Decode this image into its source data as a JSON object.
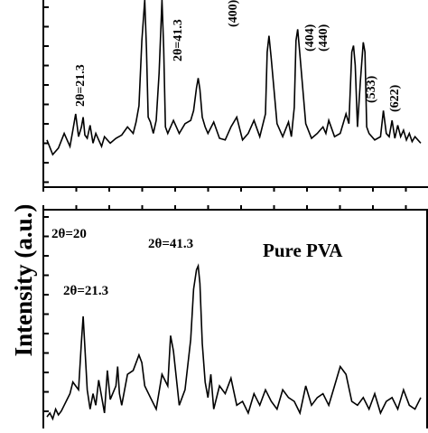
{
  "chart_data": [
    {
      "type": "line",
      "panel": "top",
      "title": "",
      "ylabel": "Intensity (a.u.)",
      "xlim": [
        15,
        80
      ],
      "ylim": [
        0,
        100
      ],
      "grid": false,
      "series": [
        {
          "x": [
            15,
            16,
            17,
            18,
            18.5,
            19,
            19.5,
            20,
            20.5,
            21,
            21.3,
            21.6,
            22,
            22.5,
            23,
            23.5,
            24,
            24.5,
            25,
            26,
            27,
            28,
            29,
            30,
            30.5,
            31,
            31.5,
            32,
            32.3,
            32.6,
            33,
            33.5,
            34,
            34.5,
            35,
            35.3,
            35.6,
            36,
            37,
            38,
            39,
            40,
            40.5,
            41,
            41.3,
            41.6,
            42,
            42.5,
            43,
            44,
            45,
            46,
            47,
            48,
            49,
            50,
            51,
            52,
            53,
            53.3,
            53.6,
            54,
            55,
            56,
            57,
            57.5,
            58,
            58.3,
            58.6,
            59,
            60,
            61,
            62,
            62.5,
            63,
            63.5,
            64,
            65,
            66,
            67,
            67.5,
            68,
            68.3,
            68.6,
            69,
            69.5,
            70,
            70.3,
            70.6,
            71,
            72,
            73,
            73.5,
            74,
            74.5,
            75,
            75.5,
            76,
            76.5,
            77,
            77.5,
            78,
            78.5,
            79,
            80
          ],
          "y": [
            14,
            5,
            9,
            18,
            14,
            10,
            20,
            30,
            16,
            22,
            28,
            17,
            15,
            23,
            12,
            18,
            14,
            10,
            16,
            12,
            15,
            17,
            22,
            18,
            25,
            35,
            75,
            100,
            70,
            28,
            25,
            18,
            26,
            55,
            100,
            70,
            22,
            18,
            26,
            18,
            24,
            26,
            32,
            46,
            52,
            45,
            28,
            22,
            18,
            25,
            15,
            14,
            22,
            28,
            14,
            18,
            26,
            16,
            30,
            68,
            78,
            64,
            24,
            16,
            25,
            16,
            34,
            75,
            82,
            66,
            24,
            15,
            18,
            20,
            22,
            18,
            26,
            16,
            18,
            30,
            24,
            68,
            72,
            60,
            22,
            50,
            74,
            68,
            22,
            18,
            14,
            16,
            32,
            18,
            16,
            26,
            15,
            23,
            16,
            20,
            14,
            18,
            13,
            16,
            12
          ]
        }
      ],
      "annotations": [
        "2θ=21.3",
        "2θ=41.3",
        "(400)",
        "(404)",
        "(440)",
        "(533)",
        "(622)"
      ]
    },
    {
      "type": "line",
      "panel": "bottom",
      "title": "Pure PVA",
      "ylabel": "Intensity (a.u.)",
      "xlim": [
        15,
        80
      ],
      "ylim": [
        0,
        100
      ],
      "grid": false,
      "series": [
        {
          "x": [
            15,
            15.5,
            16,
            16.5,
            17,
            17.5,
            18,
            18.5,
            19,
            19.5,
            20,
            20.5,
            21,
            21.3,
            21.6,
            22,
            22.5,
            23,
            23.5,
            24,
            25,
            25.5,
            26,
            27,
            27.3,
            27.6,
            28,
            29,
            30,
            31,
            31.5,
            32,
            33,
            34,
            35,
            36,
            36.5,
            37,
            38,
            39,
            40,
            40.5,
            41,
            41.3,
            41.6,
            42,
            42.5,
            43,
            43.5,
            44,
            45,
            46,
            47,
            48,
            49,
            50,
            51,
            52,
            53,
            54,
            55,
            56,
            57,
            58,
            59,
            60,
            61,
            62,
            63,
            64,
            65,
            66,
            67,
            68,
            69,
            70,
            71,
            72,
            73,
            74,
            75,
            76,
            77,
            78,
            79,
            80
          ],
          "y": [
            6,
            8,
            5,
            10,
            7,
            9,
            12,
            15,
            18,
            24,
            22,
            20,
            45,
            58,
            42,
            20,
            10,
            18,
            12,
            25,
            8,
            30,
            15,
            22,
            32,
            18,
            12,
            28,
            30,
            38,
            34,
            22,
            16,
            10,
            28,
            22,
            48,
            40,
            12,
            20,
            46,
            72,
            82,
            84,
            75,
            44,
            24,
            16,
            28,
            10,
            22,
            18,
            26,
            12,
            14,
            8,
            18,
            12,
            20,
            14,
            10,
            20,
            16,
            14,
            8,
            22,
            12,
            16,
            18,
            12,
            22,
            32,
            28,
            14,
            12,
            16,
            10,
            18,
            8,
            14,
            16,
            10,
            20,
            12,
            10,
            16
          ]
        }
      ],
      "annotations": [
        "2θ=20",
        "2θ=21.3",
        "2θ=41.3"
      ]
    }
  ]
}
